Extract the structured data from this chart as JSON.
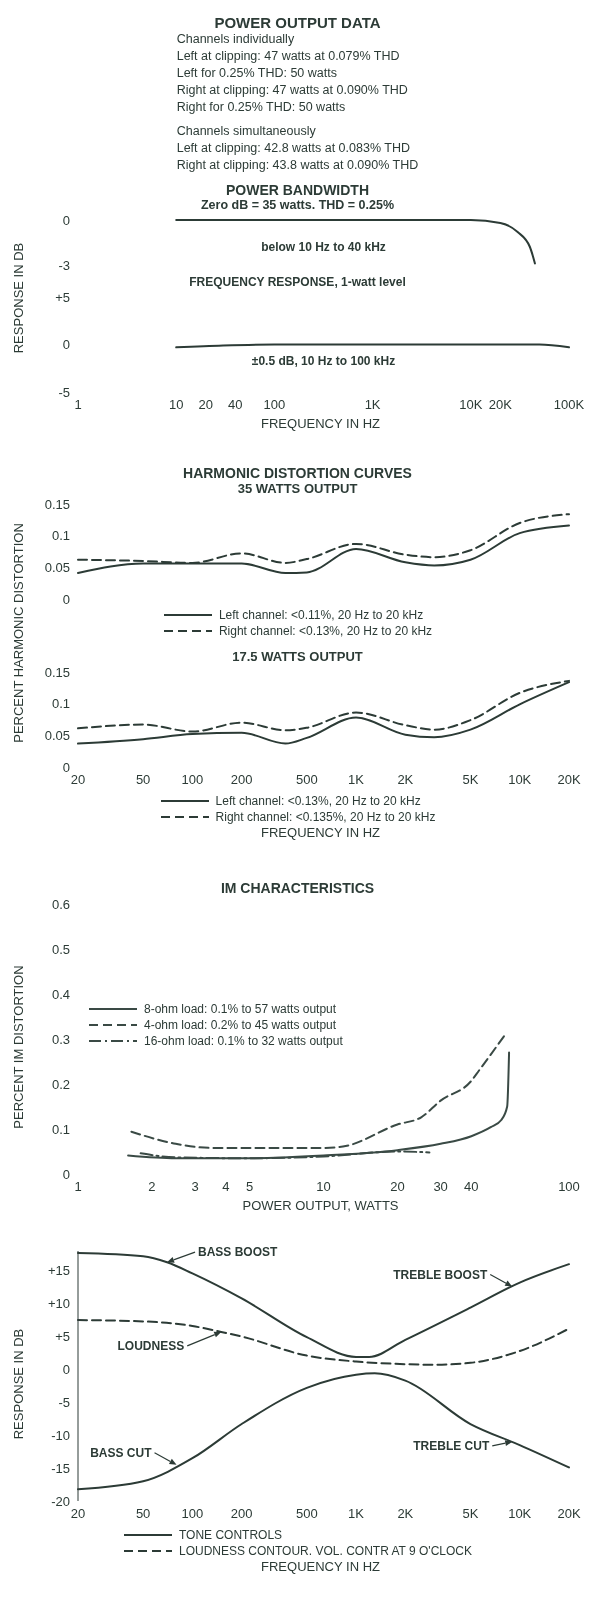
{
  "chart_data": [
    {
      "type": "other",
      "title": "POWER OUTPUT DATA",
      "annotations": [
        "Channels individually",
        "Left at clipping: 47 watts at 0.079% THD",
        "Left for 0.25% THD: 50 watts",
        "Right at clipping: 47 watts at 0.090% THD",
        "Right for 0.25% THD: 50 watts",
        "Channels simultaneously",
        "Left at clipping: 42.8 watts at 0.083% THD",
        "Right at clipping: 43.8 watts at 0.090% THD"
      ]
    },
    {
      "type": "line",
      "title": "POWER BANDWIDTH",
      "subtitle": "Zero dB = 35 watts. THD = 0.25%",
      "annotations": [
        "below 10 Hz to 40 kHz"
      ],
      "log": "x",
      "xlim": [
        1,
        100000
      ],
      "ylim": [
        -3,
        0
      ],
      "yticks": [
        0,
        -3
      ],
      "tick_labels": "y",
      "series": [
        {
          "color": "#2c3b36",
          "x": [
            10,
            100,
            1000,
            10000,
            20000,
            30000,
            40000,
            45000
          ],
          "values": [
            0,
            0,
            0,
            0,
            -0.2,
            -0.8,
            -1.8,
            -2.9
          ]
        }
      ]
    },
    {
      "type": "line",
      "title": "FREQUENCY RESPONSE, 1-watt level",
      "annotations": [
        "±0.5 dB, 10 Hz to 100 kHz"
      ],
      "xlabel": "FREQUENCY IN HZ",
      "ylabel": "RESPONSE IN DB",
      "log": "x",
      "xlim": [
        1,
        100000
      ],
      "ylim": [
        -5,
        5
      ],
      "xticks": [
        1,
        10,
        20,
        40,
        100,
        {
          "value": 1000,
          "label": "1K"
        },
        {
          "value": 10000,
          "label": "10K"
        },
        {
          "value": 20000,
          "label": "20K"
        },
        {
          "value": 100000,
          "label": "100K"
        }
      ],
      "yticks": [
        {
          "value": 5,
          "label": "+5"
        },
        0,
        -5
      ],
      "series": [
        {
          "color": "#2c3b36",
          "x": [
            10,
            30,
            100,
            1000,
            10000,
            50000,
            100000
          ],
          "values": [
            -0.3,
            -0.1,
            0,
            0,
            0,
            0,
            -0.3
          ]
        }
      ]
    },
    {
      "type": "line",
      "title": "HARMONIC DISTORTION CURVES",
      "subtitle": "35 WATTS OUTPUT",
      "log": "x",
      "xlim": [
        20,
        20000
      ],
      "ylim": [
        0,
        0.15
      ],
      "yticks": [
        0.15,
        0.1,
        0.05,
        0
      ],
      "tick_labels": "y",
      "legend": "bottom",
      "x": [
        20,
        50,
        100,
        200,
        370,
        500,
        1000,
        2000,
        3000,
        5000,
        10000,
        20000
      ],
      "series": [
        {
          "name": "Left channel: <0.11%, 20 Hz to 20 kHz",
          "color": "#2c3b36",
          "line_style": "solid",
          "values": [
            0.041,
            0.056,
            0.056,
            0.056,
            0.041,
            0.042,
            0.079,
            0.058,
            0.053,
            0.062,
            0.104,
            0.116
          ]
        },
        {
          "name": "Right channel: <0.13%, 20 Hz to 20 kHz",
          "color": "#2c3b36",
          "line_style": "dashed",
          "values": [
            0.062,
            0.06,
            0.057,
            0.072,
            0.057,
            0.063,
            0.087,
            0.07,
            0.066,
            0.077,
            0.12,
            0.134
          ]
        }
      ]
    },
    {
      "type": "line",
      "title": "17.5 WATTS OUTPUT",
      "xlabel": "FREQUENCY IN HZ",
      "ylabel": "PERCENT HARMONIC DISTORTION",
      "log": "x",
      "xlim": [
        20,
        20000
      ],
      "ylim": [
        0,
        0.15
      ],
      "yticks": [
        0.15,
        0.1,
        0.05,
        0
      ],
      "legend": "bottom",
      "xticks": [
        20,
        50,
        100,
        200,
        500,
        {
          "value": 1000,
          "label": "1K"
        },
        {
          "value": 2000,
          "label": "2K"
        },
        {
          "value": 5000,
          "label": "5K"
        },
        {
          "value": 10000,
          "label": "10K"
        },
        {
          "value": 20000,
          "label": "20K"
        }
      ],
      "x": [
        20,
        50,
        100,
        200,
        370,
        500,
        1000,
        2000,
        3000,
        5000,
        10000,
        20000
      ],
      "series": [
        {
          "name": "Left channel: <0.13%, 20 Hz to 20 kHz",
          "color": "#2c3b36",
          "line_style": "solid",
          "values": [
            0.037,
            0.044,
            0.052,
            0.054,
            0.037,
            0.046,
            0.078,
            0.051,
            0.047,
            0.059,
            0.099,
            0.134
          ]
        },
        {
          "name": "Right channel: <0.135%, 20 Hz to 20 kHz",
          "color": "#2c3b36",
          "line_style": "dashed",
          "values": [
            0.061,
            0.067,
            0.056,
            0.07,
            0.058,
            0.062,
            0.086,
            0.066,
            0.059,
            0.074,
            0.117,
            0.136
          ]
        }
      ]
    },
    {
      "type": "line",
      "title": "IM CHARACTERISTICS",
      "xlabel": "POWER OUTPUT, WATTS",
      "ylabel": "PERCENT IM DISTORTION",
      "log": "x",
      "xlim": [
        1,
        100
      ],
      "ylim": [
        0,
        0.6
      ],
      "xticks": [
        1,
        2,
        3,
        4,
        5,
        10,
        20,
        30,
        40,
        100
      ],
      "yticks": [
        0.6,
        0.5,
        0.4,
        0.3,
        0.2,
        0.1,
        0
      ],
      "legend": "left",
      "series": [
        {
          "name": "8-ohm load: 0.1% to 57 watts output",
          "color": "#3a4a45",
          "line_style": "solid",
          "x": [
            1.6,
            2.5,
            5,
            10,
            20,
            30,
            40,
            48,
            53,
            56,
            57
          ],
          "values": [
            0.041,
            0.035,
            0.035,
            0.041,
            0.053,
            0.067,
            0.084,
            0.104,
            0.12,
            0.15,
            0.27
          ]
        },
        {
          "name": "4-ohm load: 0.2% to 45 watts output",
          "color": "#3a4a45",
          "line_style": "dashed",
          "x": [
            1.65,
            2.5,
            3.5,
            5,
            10,
            12,
            20,
            25,
            30,
            40,
            43,
            55
          ],
          "values": [
            0.094,
            0.067,
            0.058,
            0.058,
            0.058,
            0.061,
            0.11,
            0.126,
            0.163,
            0.207,
            0.23,
            0.31
          ]
        },
        {
          "name": "16-ohm load: 0.1% to 32 watts output",
          "color": "#3a4a45",
          "line_style": "dashdot",
          "x": [
            1.8,
            2.5,
            5,
            10,
            20,
            27
          ],
          "values": [
            0.046,
            0.037,
            0.035,
            0.039,
            0.05,
            0.048
          ]
        }
      ]
    },
    {
      "type": "line",
      "xlabel": "FREQUENCY IN HZ",
      "ylabel": "RESPONSE IN DB",
      "log": "x",
      "xlim": [
        20,
        20000
      ],
      "ylim": [
        -20,
        18
      ],
      "legend": "bottom",
      "xticks": [
        20,
        50,
        100,
        200,
        500,
        {
          "value": 1000,
          "label": "1K"
        },
        {
          "value": 2000,
          "label": "2K"
        },
        {
          "value": 5000,
          "label": "5K"
        },
        {
          "value": 10000,
          "label": "10K"
        },
        {
          "value": 20000,
          "label": "20K"
        }
      ],
      "yticks": [
        {
          "value": 15,
          "label": "+15"
        },
        {
          "value": 10,
          "label": "+10"
        },
        {
          "value": 5,
          "label": "+5"
        },
        0,
        -5,
        -10,
        -15,
        -20
      ],
      "annotations": [
        {
          "text": "BASS BOOST",
          "x": 70,
          "y": 16.3
        },
        {
          "text": "TREBLE BOOST",
          "x": 9000,
          "y": 12.6
        },
        {
          "text": "LOUDNESS",
          "x": 150,
          "y": 5.7
        },
        {
          "text": "BASS CUT",
          "x": 80,
          "y": -14.5
        },
        {
          "text": "TREBLE CUT",
          "x": 9000,
          "y": -11
        }
      ],
      "series": [
        {
          "name": "TONE CONTROLS",
          "color": "#2c3b36",
          "line_style": "solid",
          "x": [
            20,
            50,
            70,
            100,
            200,
            500,
            1000,
            1200,
            2000,
            5000,
            10000,
            20000
          ],
          "values": [
            17.7,
            17.2,
            16.3,
            14.6,
            10.8,
            4.9,
            1.9,
            1.9,
            4.5,
            9.4,
            13.2,
            16
          ]
        },
        {
          "color": "#2c3b36",
          "line_style": "solid",
          "x": [
            20,
            50,
            100,
            200,
            500,
            1000,
            1300,
            2000,
            5000,
            10000,
            20000
          ],
          "values": [
            -18.2,
            -17,
            -13.5,
            -8.3,
            -2.8,
            -0.8,
            -0.6,
            -1.7,
            -8.3,
            -11.5,
            -14.9
          ]
        },
        {
          "name": "LOUDNESS CONTOUR. VOL. CONTR AT 9 O'CLOCK",
          "color": "#2c3b36",
          "line_style": "dashed",
          "x": [
            20,
            50,
            100,
            150,
            200,
            500,
            1000,
            2000,
            3000,
            5000,
            10000,
            20000
          ],
          "values": [
            7.5,
            7.3,
            6.6,
            5.7,
            5,
            2.1,
            1.2,
            0.8,
            0.7,
            1,
            2.8,
            6.2
          ]
        }
      ]
    }
  ]
}
